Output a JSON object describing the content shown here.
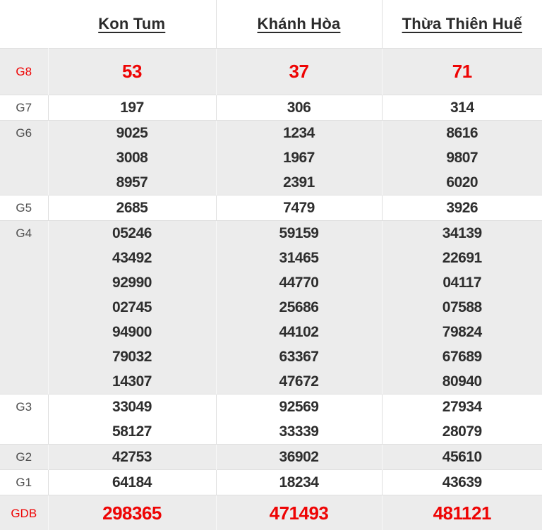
{
  "colors": {
    "accent_red": "#ee0404",
    "shaded_row_gray": "#ececec",
    "grid_border": "#dedede",
    "value_text": "#2e2e2e",
    "label_text": "#4f4f4f"
  },
  "table": {
    "header": {
      "columns": [
        "Kon Tum",
        "Khánh Hòa",
        "Thừa Thiên Huế"
      ]
    },
    "rows": [
      {
        "label": "G8",
        "shaded": true,
        "highlight": true,
        "values": [
          [
            "53"
          ],
          [
            "37"
          ],
          [
            "71"
          ]
        ]
      },
      {
        "label": "G7",
        "shaded": false,
        "highlight": false,
        "values": [
          [
            "197"
          ],
          [
            "306"
          ],
          [
            "314"
          ]
        ]
      },
      {
        "label": "G6",
        "shaded": true,
        "highlight": false,
        "values": [
          [
            "9025",
            "3008",
            "8957"
          ],
          [
            "1234",
            "1967",
            "2391"
          ],
          [
            "8616",
            "9807",
            "6020"
          ]
        ]
      },
      {
        "label": "G5",
        "shaded": false,
        "highlight": false,
        "values": [
          [
            "2685"
          ],
          [
            "7479"
          ],
          [
            "3926"
          ]
        ]
      },
      {
        "label": "G4",
        "shaded": true,
        "highlight": false,
        "values": [
          [
            "05246",
            "43492",
            "92990",
            "02745",
            "94900",
            "79032",
            "14307"
          ],
          [
            "59159",
            "31465",
            "44770",
            "25686",
            "44102",
            "63367",
            "47672"
          ],
          [
            "34139",
            "22691",
            "04117",
            "07588",
            "79824",
            "67689",
            "80940"
          ]
        ]
      },
      {
        "label": "G3",
        "shaded": false,
        "highlight": false,
        "values": [
          [
            "33049",
            "58127"
          ],
          [
            "92569",
            "33339"
          ],
          [
            "27934",
            "28079"
          ]
        ]
      },
      {
        "label": "G2",
        "shaded": true,
        "highlight": false,
        "values": [
          [
            "42753"
          ],
          [
            "36902"
          ],
          [
            "45610"
          ]
        ]
      },
      {
        "label": "G1",
        "shaded": false,
        "highlight": false,
        "values": [
          [
            "64184"
          ],
          [
            "18234"
          ],
          [
            "43639"
          ]
        ]
      },
      {
        "label": "GDB",
        "shaded": true,
        "highlight": true,
        "values": [
          [
            "298365"
          ],
          [
            "471493"
          ],
          [
            "481121"
          ]
        ]
      }
    ]
  }
}
